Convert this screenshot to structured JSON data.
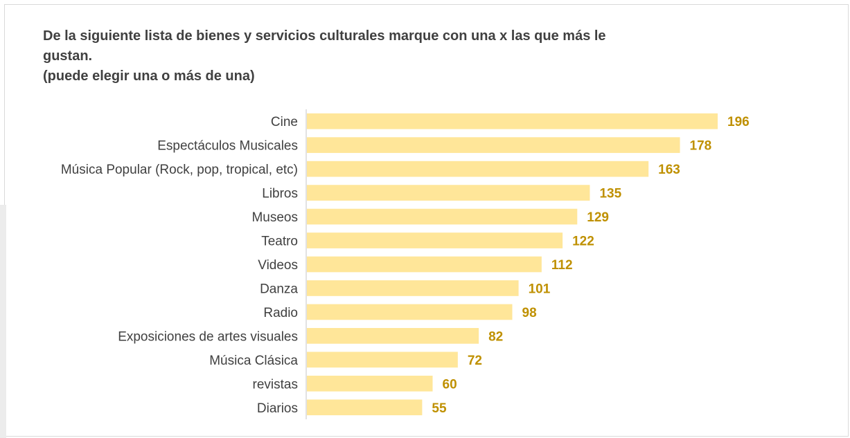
{
  "title_lines": [
    "De la siguiente lista de bienes y servicios culturales marque con una x las que más le gustan.",
    "(puede elegir una o más de una)"
  ],
  "colors": {
    "bar": "#ffe699",
    "value_label": "#bf9000",
    "category_label": "#404040",
    "axis": "#d9d9d9"
  },
  "chart_data": {
    "type": "bar",
    "orientation": "horizontal",
    "title": "De la siguiente lista de bienes y servicios culturales marque con una x las que más le gustan. (puede elegir una o más de una)",
    "xlabel": "",
    "ylabel": "",
    "grid": false,
    "legend": "none",
    "categories": [
      "Cine",
      "Espectáculos Musicales",
      "Música Popular (Rock, pop, tropical, etc)",
      "Libros",
      "Museos",
      "Teatro",
      "Videos",
      "Danza",
      "Radio",
      "Exposiciones de artes visuales",
      "Música Clásica",
      "revistas ",
      "Diarios"
    ],
    "values": [
      196,
      178,
      163,
      135,
      129,
      122,
      112,
      101,
      98,
      82,
      72,
      60,
      55
    ],
    "xlim": [
      0,
      196
    ]
  }
}
